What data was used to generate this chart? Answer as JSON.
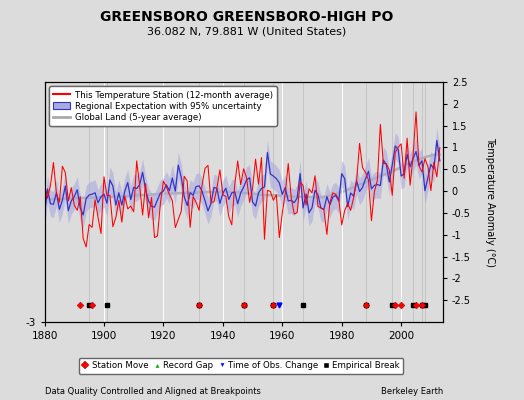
{
  "title": "GREENSBORO GREENSBORO-HIGH PO",
  "subtitle": "36.082 N, 79.881 W (United States)",
  "xlabel_left": "Data Quality Controlled and Aligned at Breakpoints",
  "xlabel_right": "Berkeley Earth",
  "ylabel": "Temperature Anomaly (°C)",
  "xlim": [
    1880,
    2014
  ],
  "ylim": [
    -3.0,
    2.5
  ],
  "yticks_right": [
    -2.5,
    -2,
    -1.5,
    -1,
    -0.5,
    0,
    0.5,
    1,
    1.5,
    2,
    2.5
  ],
  "bg_color": "#dcdcdc",
  "plot_bg_color": "#dcdcdc",
  "grid_color": "#ffffff",
  "station_color": "#ff0000",
  "regional_color": "#3333cc",
  "regional_fill_color": "#aaaadd",
  "global_color": "#aaaaaa",
  "station_moves_x": [
    1892,
    1896,
    1932,
    1947,
    1957,
    1988,
    1998,
    2000,
    2005,
    2007
  ],
  "empirical_breaks_x": [
    1895,
    1901,
    1932,
    1947,
    1957,
    1967,
    1988,
    1997,
    2004,
    2007,
    2008
  ],
  "obs_change_x": [
    1959
  ],
  "record_gap_x": []
}
